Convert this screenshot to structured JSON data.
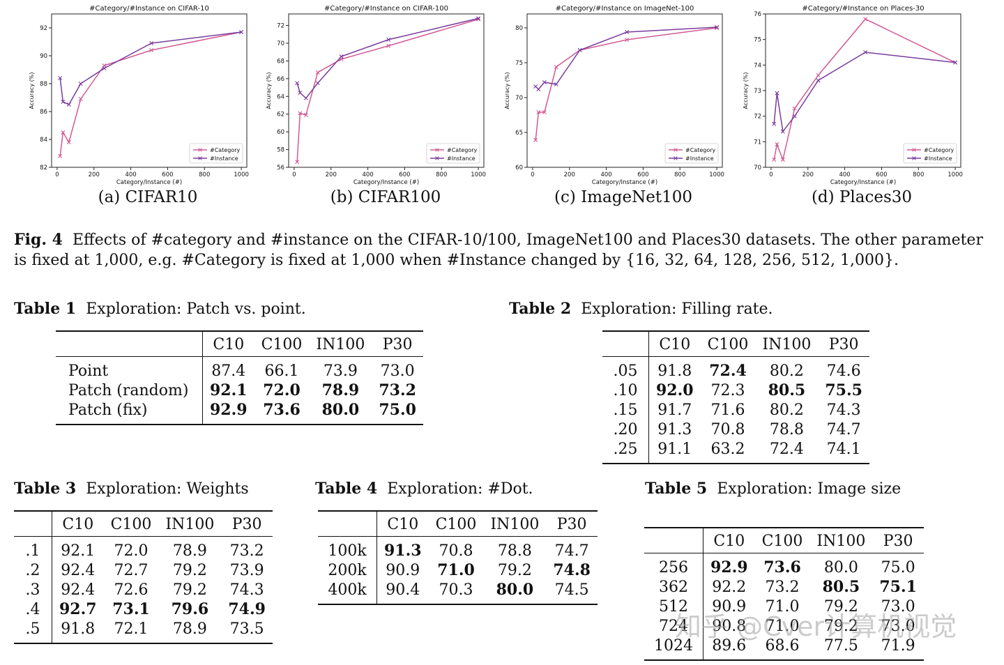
{
  "colors": {
    "category": "#d15a93",
    "instance": "#7a3c9e",
    "axis": "#222222"
  },
  "chart_data": [
    {
      "type": "line",
      "title": "#Category/#Instance on CIFAR-10",
      "xlabel": "Category/Instance (#)",
      "ylabel": "Accuracy (%)",
      "xlim": [
        -30,
        1030
      ],
      "ylim": [
        82,
        93
      ],
      "xticks": [
        0,
        200,
        400,
        600,
        800,
        1000
      ],
      "yticks": [
        82,
        84,
        86,
        88,
        90,
        92
      ],
      "x": [
        16,
        32,
        64,
        128,
        256,
        512,
        1000
      ],
      "series": [
        {
          "name": "#Category",
          "values": [
            82.8,
            84.5,
            83.8,
            86.9,
            89.3,
            90.4,
            91.7
          ]
        },
        {
          "name": "#Instance",
          "values": [
            88.4,
            86.7,
            86.5,
            88.0,
            89.1,
            90.9,
            91.7
          ]
        }
      ],
      "legend": "lower-right",
      "sublabel": "(a)  CIFAR10"
    },
    {
      "type": "line",
      "title": "#Category/#Instance on CIFAR-100",
      "xlabel": "Category/Instance (#)",
      "ylabel": "Accuracy (%)",
      "xlim": [
        -30,
        1030
      ],
      "ylim": [
        56,
        73.3
      ],
      "xticks": [
        0,
        200,
        400,
        600,
        800,
        1000
      ],
      "yticks": [
        56,
        58,
        60,
        62,
        64,
        66,
        68,
        70,
        72
      ],
      "x": [
        16,
        32,
        64,
        128,
        256,
        512,
        1000
      ],
      "series": [
        {
          "name": "#Category",
          "values": [
            56.6,
            62.1,
            61.9,
            66.7,
            68.2,
            69.7,
            72.7
          ]
        },
        {
          "name": "#Instance",
          "values": [
            65.5,
            64.4,
            63.8,
            65.5,
            68.5,
            70.4,
            72.8
          ]
        }
      ],
      "legend": "lower-right",
      "sublabel": "(b)  CIFAR100"
    },
    {
      "type": "line",
      "title": "#Category/#Instance on ImageNet-100",
      "xlabel": "Category/Instance (#)",
      "ylabel": "Accuracy (%)",
      "xlim": [
        -30,
        1030
      ],
      "ylim": [
        60,
        82
      ],
      "xticks": [
        0,
        200,
        400,
        600,
        800,
        1000
      ],
      "yticks": [
        60,
        65,
        70,
        75,
        80
      ],
      "x": [
        16,
        32,
        64,
        128,
        256,
        512,
        1000
      ],
      "series": [
        {
          "name": "#Category",
          "values": [
            63.9,
            67.9,
            67.9,
            74.4,
            76.8,
            78.3,
            80.0
          ]
        },
        {
          "name": "#Instance",
          "values": [
            71.6,
            71.2,
            72.2,
            71.9,
            76.8,
            79.4,
            80.1
          ]
        }
      ],
      "legend": "lower-right",
      "sublabel": "(c)  ImageNet100"
    },
    {
      "type": "line",
      "title": "#Category/#Instance on Places-30",
      "xlabel": "Category/Instance (#)",
      "ylabel": "Accuracy (%)",
      "xlim": [
        -30,
        1030
      ],
      "ylim": [
        70,
        76
      ],
      "xticks": [
        0,
        200,
        400,
        600,
        800,
        1000
      ],
      "yticks": [
        70,
        71,
        72,
        73,
        74,
        75,
        76
      ],
      "x": [
        16,
        32,
        64,
        128,
        256,
        512,
        1000
      ],
      "series": [
        {
          "name": "#Category",
          "values": [
            70.3,
            70.9,
            70.3,
            72.3,
            73.6,
            75.8,
            74.1
          ]
        },
        {
          "name": "#Instance",
          "values": [
            71.7,
            72.9,
            71.4,
            72.0,
            73.4,
            74.5,
            74.1
          ]
        }
      ],
      "legend": "lower-right",
      "sublabel": "(d)  Places30"
    }
  ],
  "caption": {
    "label": "Fig. 4",
    "text": "Effects of #category and #instance on the CIFAR-10/100, ImageNet100 and Places30 datasets. The other parameter is fixed at 1,000, e.g. #Category is fixed at 1,000 when #Instance changed by {16, 32, 64, 128, 256, 512, 1,000}."
  },
  "tables": {
    "t1": {
      "label": "Table 1",
      "title": "Exploration: Patch vs. point.",
      "header": [
        "",
        "C10",
        "C100",
        "IN100",
        "P30"
      ],
      "rows": [
        [
          "Point",
          "87.4",
          "66.1",
          "73.9",
          "73.0"
        ],
        [
          "Patch (random)",
          "92.1",
          "72.0",
          "78.9",
          "73.2"
        ],
        [
          "Patch (fix)",
          "92.9",
          "73.6",
          "80.0",
          "75.0"
        ]
      ]
    },
    "t2": {
      "label": "Table 2",
      "title": "Exploration: Filling rate.",
      "header": [
        "",
        "C10",
        "C100",
        "IN100",
        "P30"
      ],
      "rows": [
        [
          ".05",
          "91.8",
          "72.4",
          "80.2",
          "74.6"
        ],
        [
          ".10",
          "92.0",
          "72.3",
          "80.5",
          "75.5"
        ],
        [
          ".15",
          "91.7",
          "71.6",
          "80.2",
          "74.3"
        ],
        [
          ".20",
          "91.3",
          "70.8",
          "78.8",
          "74.7"
        ],
        [
          ".25",
          "91.1",
          "63.2",
          "72.4",
          "74.1"
        ]
      ]
    },
    "t3": {
      "label": "Table 3",
      "title": "Exploration: Weights",
      "header": [
        "",
        "C10",
        "C100",
        "IN100",
        "P30"
      ],
      "rows": [
        [
          ".1",
          "92.1",
          "72.0",
          "78.9",
          "73.2"
        ],
        [
          ".2",
          "92.4",
          "72.7",
          "79.2",
          "73.9"
        ],
        [
          ".3",
          "92.4",
          "72.6",
          "79.2",
          "74.3"
        ],
        [
          ".4",
          "92.7",
          "73.1",
          "79.6",
          "74.9"
        ],
        [
          ".5",
          "91.8",
          "72.1",
          "78.9",
          "73.5"
        ]
      ]
    },
    "t4": {
      "label": "Table 4",
      "title": "Exploration: #Dot.",
      "header": [
        "",
        "C10",
        "C100",
        "IN100",
        "P30"
      ],
      "rows": [
        [
          "100k",
          "91.3",
          "70.8",
          "78.8",
          "74.7"
        ],
        [
          "200k",
          "90.9",
          "71.0",
          "79.2",
          "74.8"
        ],
        [
          "400k",
          "90.4",
          "70.3",
          "80.0",
          "74.5"
        ]
      ]
    },
    "t5": {
      "label": "Table 5",
      "title": "Exploration: Image size",
      "header": [
        "",
        "C10",
        "C100",
        "IN100",
        "P30"
      ],
      "rows": [
        [
          "256",
          "92.9",
          "73.6",
          "80.0",
          "75.0"
        ],
        [
          "362",
          "92.2",
          "73.2",
          "80.5",
          "75.1"
        ],
        [
          "512",
          "90.9",
          "71.0",
          "79.2",
          "73.0"
        ],
        [
          "724",
          "90.8",
          "71.0",
          "79.2",
          "73.0"
        ],
        [
          "1024",
          "89.6",
          "68.6",
          "77.5",
          "71.9"
        ]
      ]
    }
  },
  "watermark": "知乎 @Cver计算机视觉"
}
